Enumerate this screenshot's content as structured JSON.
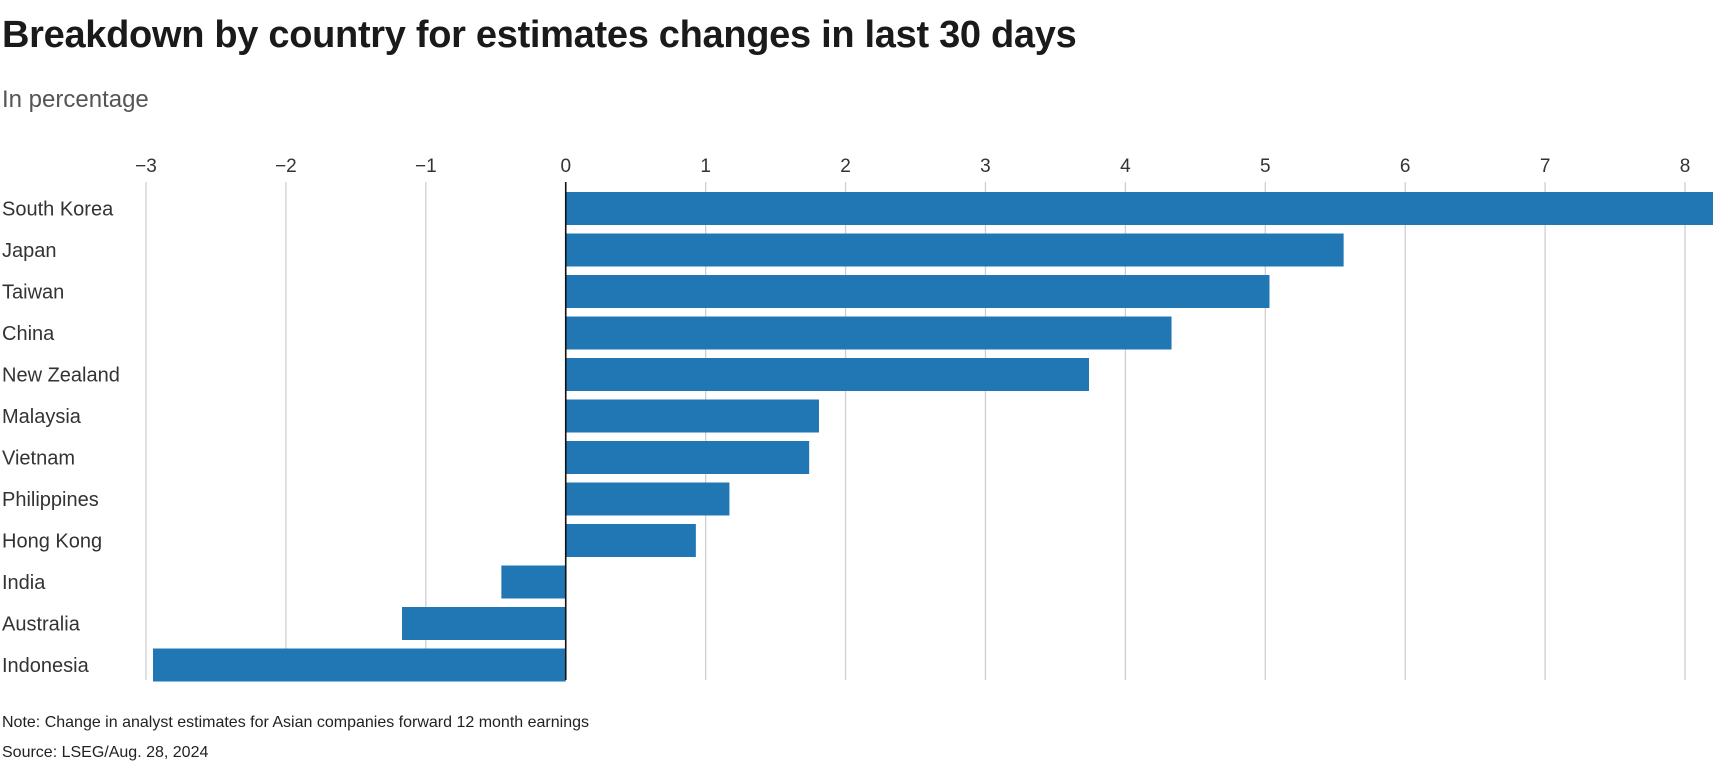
{
  "chart_data": {
    "type": "bar",
    "orientation": "horizontal",
    "title": "Breakdown by country for estimates changes in last 30 days",
    "subtitle": "In percentage",
    "categories": [
      "South Korea",
      "Japan",
      "Taiwan",
      "China",
      "New Zealand",
      "Malaysia",
      "Vietnam",
      "Philippines",
      "Hong Kong",
      "India",
      "Australia",
      "Indonesia"
    ],
    "values": [
      8.2,
      5.56,
      5.03,
      4.33,
      3.74,
      1.81,
      1.74,
      1.17,
      0.93,
      -0.46,
      -1.17,
      -2.95
    ],
    "xlim": [
      -3,
      8.2
    ],
    "xticks": [
      -3,
      -2,
      -1,
      0,
      1,
      2,
      3,
      4,
      5,
      6,
      7,
      8
    ],
    "xtick_labels": [
      "−3",
      "−2",
      "−1",
      "0",
      "1",
      "2",
      "3",
      "4",
      "5",
      "6",
      "7",
      "8"
    ],
    "grid": true,
    "bar_color": "#2077b4",
    "xlabel": "",
    "ylabel": ""
  },
  "footer": {
    "note": "Note: Change in analyst estimates for Asian companies forward 12 month earnings",
    "source": "Source: LSEG/Aug. 28, 2024"
  }
}
